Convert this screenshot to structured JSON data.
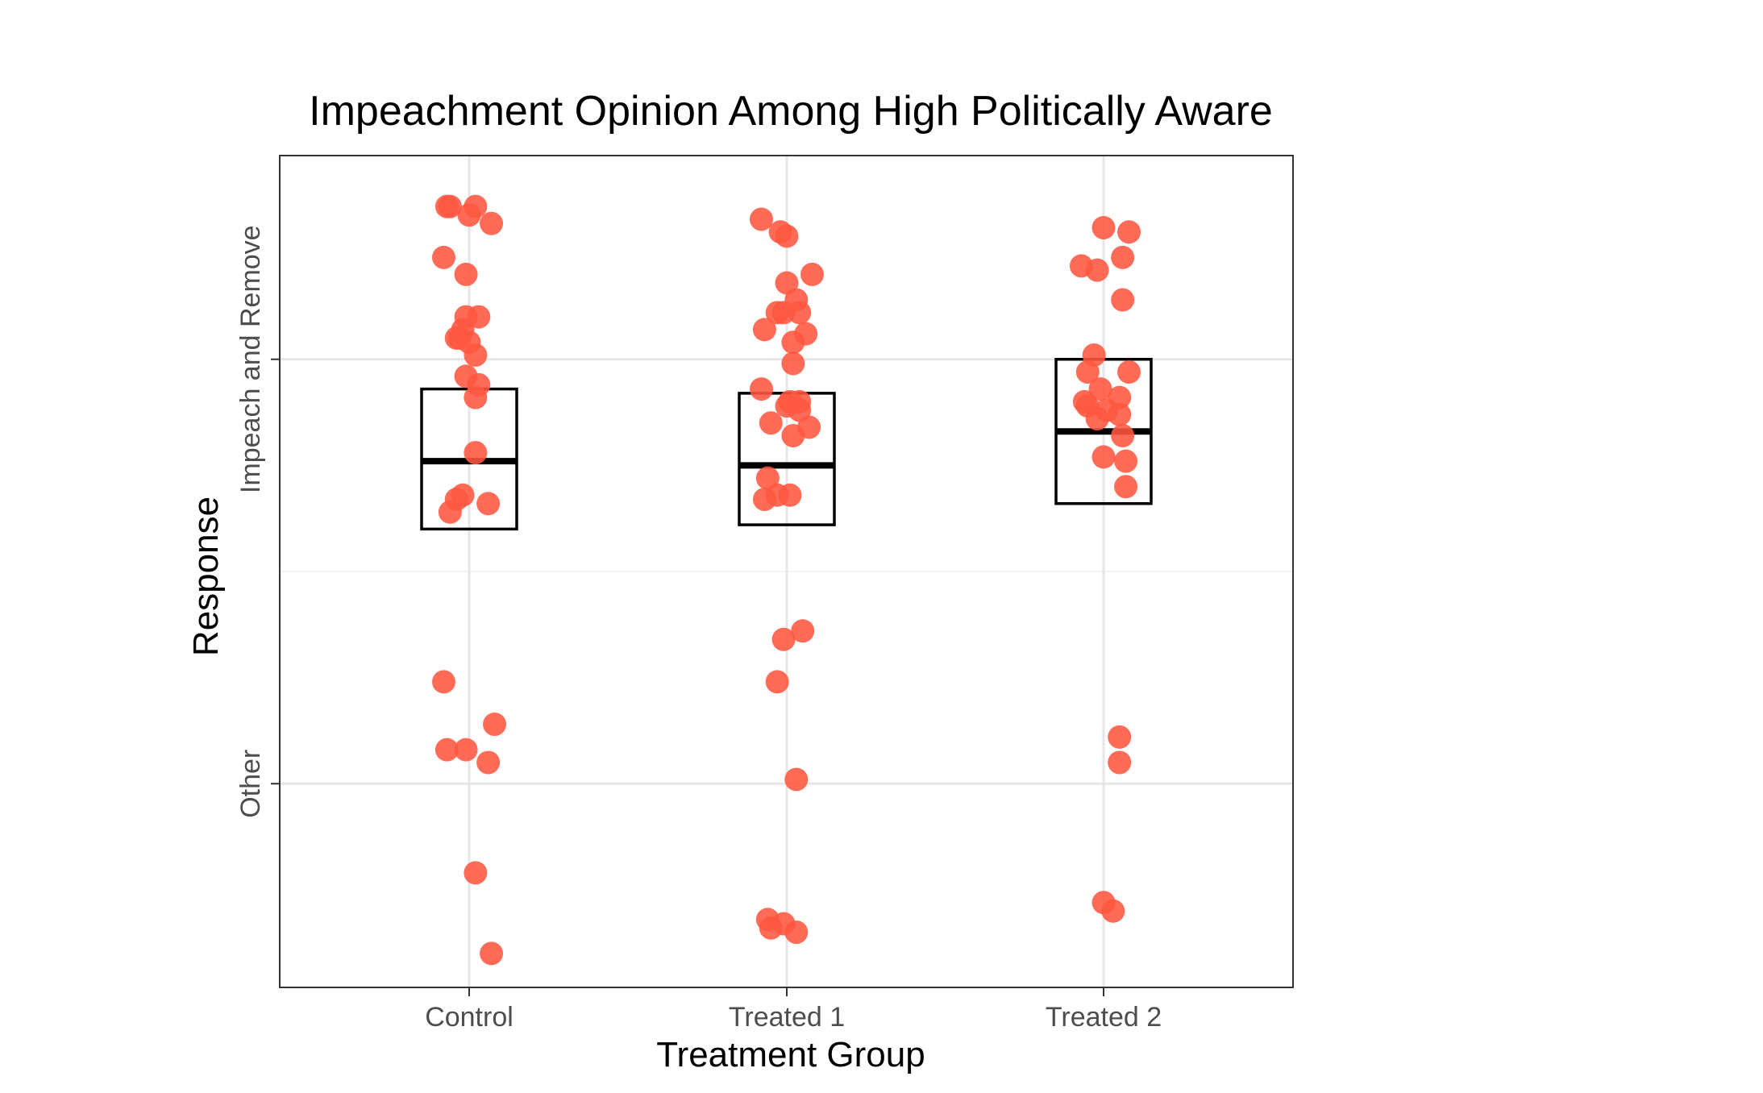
{
  "chart_data": {
    "type": "scatter",
    "title": "Impeachment Opinion Among High Politically Aware",
    "xlabel": "Treatment Group",
    "ylabel": "Response",
    "categories": [
      "Control",
      "Treated 1",
      "Treated 2"
    ],
    "y_ticks": [
      "Other",
      "Impeach and Remove"
    ],
    "y_tick_values": [
      0,
      1
    ],
    "ylim": [
      -0.48,
      1.48
    ],
    "grid": true,
    "legend": "none",
    "point_color": "#FF5640",
    "box_stroke": "#000000",
    "boxes": [
      {
        "category": "Control",
        "q1": 0.6,
        "median": 0.76,
        "q3": 0.93
      },
      {
        "category": "Treated 1",
        "q1": 0.61,
        "median": 0.75,
        "q3": 0.92
      },
      {
        "category": "Treated 2",
        "q1": 0.66,
        "median": 0.83,
        "q3": 1.0
      }
    ],
    "points": [
      {
        "category": "Control",
        "x_jitter": -0.07,
        "y": 1.36
      },
      {
        "category": "Control",
        "x_jitter": -0.06,
        "y": 1.36
      },
      {
        "category": "Control",
        "x_jitter": 0.02,
        "y": 1.36
      },
      {
        "category": "Control",
        "x_jitter": 0.0,
        "y": 1.34
      },
      {
        "category": "Control",
        "x_jitter": 0.07,
        "y": 1.32
      },
      {
        "category": "Control",
        "x_jitter": -0.08,
        "y": 1.24
      },
      {
        "category": "Control",
        "x_jitter": -0.01,
        "y": 1.2
      },
      {
        "category": "Control",
        "x_jitter": 0.03,
        "y": 1.1
      },
      {
        "category": "Control",
        "x_jitter": -0.01,
        "y": 1.1
      },
      {
        "category": "Control",
        "x_jitter": -0.02,
        "y": 1.07
      },
      {
        "category": "Control",
        "x_jitter": -0.03,
        "y": 1.05
      },
      {
        "category": "Control",
        "x_jitter": -0.04,
        "y": 1.05
      },
      {
        "category": "Control",
        "x_jitter": 0.0,
        "y": 1.04
      },
      {
        "category": "Control",
        "x_jitter": 0.02,
        "y": 1.01
      },
      {
        "category": "Control",
        "x_jitter": -0.01,
        "y": 0.96
      },
      {
        "category": "Control",
        "x_jitter": 0.03,
        "y": 0.94
      },
      {
        "category": "Control",
        "x_jitter": 0.02,
        "y": 0.91
      },
      {
        "category": "Control",
        "x_jitter": 0.02,
        "y": 0.78
      },
      {
        "category": "Control",
        "x_jitter": -0.02,
        "y": 0.68
      },
      {
        "category": "Control",
        "x_jitter": -0.04,
        "y": 0.67
      },
      {
        "category": "Control",
        "x_jitter": 0.06,
        "y": 0.66
      },
      {
        "category": "Control",
        "x_jitter": -0.06,
        "y": 0.64
      },
      {
        "category": "Control",
        "x_jitter": -0.08,
        "y": 0.24
      },
      {
        "category": "Control",
        "x_jitter": 0.08,
        "y": 0.14
      },
      {
        "category": "Control",
        "x_jitter": -0.07,
        "y": 0.08
      },
      {
        "category": "Control",
        "x_jitter": -0.01,
        "y": 0.08
      },
      {
        "category": "Control",
        "x_jitter": 0.06,
        "y": 0.05
      },
      {
        "category": "Control",
        "x_jitter": 0.02,
        "y": -0.21
      },
      {
        "category": "Control",
        "x_jitter": 0.07,
        "y": -0.4
      },
      {
        "category": "Treated 1",
        "x_jitter": -0.08,
        "y": 1.33
      },
      {
        "category": "Treated 1",
        "x_jitter": -0.02,
        "y": 1.3
      },
      {
        "category": "Treated 1",
        "x_jitter": 0.0,
        "y": 1.29
      },
      {
        "category": "Treated 1",
        "x_jitter": 0.08,
        "y": 1.2
      },
      {
        "category": "Treated 1",
        "x_jitter": 0.0,
        "y": 1.18
      },
      {
        "category": "Treated 1",
        "x_jitter": 0.03,
        "y": 1.14
      },
      {
        "category": "Treated 1",
        "x_jitter": -0.03,
        "y": 1.11
      },
      {
        "category": "Treated 1",
        "x_jitter": 0.04,
        "y": 1.11
      },
      {
        "category": "Treated 1",
        "x_jitter": -0.01,
        "y": 1.11
      },
      {
        "category": "Treated 1",
        "x_jitter": -0.07,
        "y": 1.07
      },
      {
        "category": "Treated 1",
        "x_jitter": 0.06,
        "y": 1.06
      },
      {
        "category": "Treated 1",
        "x_jitter": 0.02,
        "y": 1.04
      },
      {
        "category": "Treated 1",
        "x_jitter": 0.02,
        "y": 0.99
      },
      {
        "category": "Treated 1",
        "x_jitter": -0.08,
        "y": 0.93
      },
      {
        "category": "Treated 1",
        "x_jitter": 0.04,
        "y": 0.9
      },
      {
        "category": "Treated 1",
        "x_jitter": 0.01,
        "y": 0.9
      },
      {
        "category": "Treated 1",
        "x_jitter": 0.0,
        "y": 0.89
      },
      {
        "category": "Treated 1",
        "x_jitter": 0.04,
        "y": 0.88
      },
      {
        "category": "Treated 1",
        "x_jitter": -0.05,
        "y": 0.85
      },
      {
        "category": "Treated 1",
        "x_jitter": 0.07,
        "y": 0.84
      },
      {
        "category": "Treated 1",
        "x_jitter": 0.02,
        "y": 0.82
      },
      {
        "category": "Treated 1",
        "x_jitter": -0.06,
        "y": 0.72
      },
      {
        "category": "Treated 1",
        "x_jitter": 0.01,
        "y": 0.68
      },
      {
        "category": "Treated 1",
        "x_jitter": -0.03,
        "y": 0.68
      },
      {
        "category": "Treated 1",
        "x_jitter": -0.07,
        "y": 0.67
      },
      {
        "category": "Treated 1",
        "x_jitter": 0.05,
        "y": 0.36
      },
      {
        "category": "Treated 1",
        "x_jitter": -0.01,
        "y": 0.34
      },
      {
        "category": "Treated 1",
        "x_jitter": -0.03,
        "y": 0.24
      },
      {
        "category": "Treated 1",
        "x_jitter": 0.03,
        "y": 0.01
      },
      {
        "category": "Treated 1",
        "x_jitter": -0.06,
        "y": -0.32
      },
      {
        "category": "Treated 1",
        "x_jitter": -0.01,
        "y": -0.33
      },
      {
        "category": "Treated 1",
        "x_jitter": -0.05,
        "y": -0.34
      },
      {
        "category": "Treated 1",
        "x_jitter": 0.03,
        "y": -0.35
      },
      {
        "category": "Treated 2",
        "x_jitter": 0.0,
        "y": 1.31
      },
      {
        "category": "Treated 2",
        "x_jitter": 0.08,
        "y": 1.3
      },
      {
        "category": "Treated 2",
        "x_jitter": 0.06,
        "y": 1.24
      },
      {
        "category": "Treated 2",
        "x_jitter": -0.07,
        "y": 1.22
      },
      {
        "category": "Treated 2",
        "x_jitter": -0.02,
        "y": 1.21
      },
      {
        "category": "Treated 2",
        "x_jitter": 0.06,
        "y": 1.14
      },
      {
        "category": "Treated 2",
        "x_jitter": -0.03,
        "y": 1.01
      },
      {
        "category": "Treated 2",
        "x_jitter": -0.05,
        "y": 0.97
      },
      {
        "category": "Treated 2",
        "x_jitter": 0.08,
        "y": 0.97
      },
      {
        "category": "Treated 2",
        "x_jitter": -0.01,
        "y": 0.93
      },
      {
        "category": "Treated 2",
        "x_jitter": 0.05,
        "y": 0.91
      },
      {
        "category": "Treated 2",
        "x_jitter": -0.06,
        "y": 0.9
      },
      {
        "category": "Treated 2",
        "x_jitter": -0.05,
        "y": 0.89
      },
      {
        "category": "Treated 2",
        "x_jitter": 0.01,
        "y": 0.88
      },
      {
        "category": "Treated 2",
        "x_jitter": 0.05,
        "y": 0.87
      },
      {
        "category": "Treated 2",
        "x_jitter": -0.02,
        "y": 0.86
      },
      {
        "category": "Treated 2",
        "x_jitter": 0.06,
        "y": 0.82
      },
      {
        "category": "Treated 2",
        "x_jitter": 0.0,
        "y": 0.77
      },
      {
        "category": "Treated 2",
        "x_jitter": 0.07,
        "y": 0.76
      },
      {
        "category": "Treated 2",
        "x_jitter": 0.07,
        "y": 0.7
      },
      {
        "category": "Treated 2",
        "x_jitter": 0.05,
        "y": 0.11
      },
      {
        "category": "Treated 2",
        "x_jitter": 0.05,
        "y": 0.05
      },
      {
        "category": "Treated 2",
        "x_jitter": 0.0,
        "y": -0.28
      },
      {
        "category": "Treated 2",
        "x_jitter": 0.03,
        "y": -0.3
      }
    ]
  }
}
